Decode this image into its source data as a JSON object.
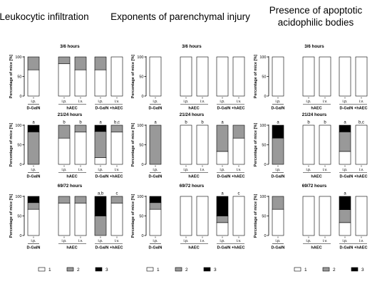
{
  "colors": {
    "1": "#ffffff",
    "2": "#999999",
    "3": "#000000"
  },
  "legend": [
    "1",
    "2",
    "3"
  ],
  "column_titles": [
    [
      "Leukocytic infiltration"
    ],
    [
      "Exponents of parenchymal injury"
    ],
    [
      "Presence of apoptotic",
      "acidophilic bodies"
    ]
  ],
  "row_titles": [
    "3/6 hours",
    "21/24 hours",
    "69/72 hours"
  ],
  "ylabel": "Percentage of mice [%]",
  "yticks": [
    0,
    50,
    100
  ],
  "groups": [
    "D-GalN",
    "hAEC",
    "D-GalN +hAEC"
  ],
  "bars": [
    "i.p.",
    "i.p.",
    "i.v.",
    "i.p.",
    "i.v."
  ],
  "chart_data": [
    {
      "type": "bar",
      "stacked": true,
      "title": "3/6 hours",
      "ylabel": "Percentage of mice [%]",
      "ylim": [
        0,
        100
      ],
      "categories": [
        "D-GalN i.p.",
        "hAEC i.p.",
        "hAEC i.v.",
        "D-GalN +hAEC i.p.",
        "D-GalN +hAEC i.v."
      ],
      "series": [
        {
          "name": "1",
          "values": [
            67,
            83,
            67,
            67,
            100
          ]
        },
        {
          "name": "2",
          "values": [
            33,
            17,
            33,
            33,
            0
          ]
        },
        {
          "name": "3",
          "values": [
            0,
            0,
            0,
            0,
            0
          ]
        }
      ],
      "annotations": [
        "",
        "",
        "",
        "",
        ""
      ]
    },
    {
      "type": "bar",
      "stacked": true,
      "title": "3/6 hours",
      "ylabel": "Percentage of mice [%]",
      "ylim": [
        0,
        100
      ],
      "categories": [
        "D-GalN i.p.",
        "hAEC i.p.",
        "hAEC i.v.",
        "D-GalN +hAEC i.p.",
        "D-GalN +hAEC i.v."
      ],
      "series": [
        {
          "name": "1",
          "values": [
            100,
            100,
            100,
            100,
            100
          ]
        },
        {
          "name": "2",
          "values": [
            0,
            0,
            0,
            0,
            0
          ]
        },
        {
          "name": "3",
          "values": [
            0,
            0,
            0,
            0,
            0
          ]
        }
      ],
      "annotations": [
        "",
        "",
        "",
        "",
        ""
      ]
    },
    {
      "type": "bar",
      "stacked": true,
      "title": "3/6 hours",
      "ylabel": "Percentage of mice [%]",
      "ylim": [
        0,
        100
      ],
      "categories": [
        "D-GalN i.p.",
        "hAEC i.p.",
        "hAEC i.v.",
        "D-GalN +hAEC i.p.",
        "D-GalN +hAEC i.v."
      ],
      "series": [
        {
          "name": "1",
          "values": [
            100,
            100,
            100,
            100,
            100
          ]
        },
        {
          "name": "2",
          "values": [
            0,
            0,
            0,
            0,
            0
          ]
        },
        {
          "name": "3",
          "values": [
            0,
            0,
            0,
            0,
            0
          ]
        }
      ],
      "annotations": [
        "",
        "",
        "",
        "",
        ""
      ]
    },
    {
      "type": "bar",
      "stacked": true,
      "title": "21/24 hours",
      "ylabel": "Percentage of mice [%]",
      "ylim": [
        0,
        100
      ],
      "categories": [
        "D-GalN i.p.",
        "hAEC i.p.",
        "hAEC i.v.",
        "D-GalN +hAEC i.p.",
        "D-GalN +hAEC i.v."
      ],
      "series": [
        {
          "name": "1",
          "values": [
            0,
            67,
            83,
            17,
            83
          ]
        },
        {
          "name": "2",
          "values": [
            83,
            33,
            17,
            67,
            17
          ]
        },
        {
          "name": "3",
          "values": [
            17,
            0,
            0,
            16,
            0
          ]
        }
      ],
      "annotations": [
        "a",
        "b",
        "b",
        "a",
        "b,c"
      ]
    },
    {
      "type": "bar",
      "stacked": true,
      "title": "21/24 hours",
      "ylabel": "Percentage of mice [%]",
      "ylim": [
        0,
        100
      ],
      "categories": [
        "D-GalN i.p.",
        "hAEC i.p.",
        "hAEC i.v.",
        "D-GalN +hAEC i.p.",
        "D-GalN +hAEC i.v."
      ],
      "series": [
        {
          "name": "1",
          "values": [
            0,
            100,
            100,
            33,
            67
          ]
        },
        {
          "name": "2",
          "values": [
            100,
            0,
            0,
            67,
            33
          ]
        },
        {
          "name": "3",
          "values": [
            0,
            0,
            0,
            0,
            0
          ]
        }
      ],
      "annotations": [
        "a",
        "b",
        "b",
        "a",
        ""
      ]
    },
    {
      "type": "bar",
      "stacked": true,
      "title": "21/24 hours",
      "ylabel": "Percentage of mice [%]",
      "ylim": [
        0,
        100
      ],
      "categories": [
        "D-GalN i.p.",
        "hAEC i.p.",
        "hAEC i.v.",
        "D-GalN +hAEC i.p.",
        "D-GalN +hAEC i.v."
      ],
      "series": [
        {
          "name": "1",
          "values": [
            0,
            100,
            100,
            33,
            100
          ]
        },
        {
          "name": "2",
          "values": [
            67,
            0,
            0,
            50,
            0
          ]
        },
        {
          "name": "3",
          "values": [
            33,
            0,
            0,
            17,
            0
          ]
        }
      ],
      "annotations": [
        "a",
        "b",
        "b",
        "a",
        "b,c"
      ]
    },
    {
      "type": "bar",
      "stacked": true,
      "title": "69/72 hours",
      "ylabel": "Percentage of mice [%]",
      "ylim": [
        0,
        100
      ],
      "categories": [
        "D-GalN i.p.",
        "hAEC i.p.",
        "hAEC i.v.",
        "D-GalN +hAEC i.p.",
        "D-GalN +hAEC i.v."
      ],
      "series": [
        {
          "name": "1",
          "values": [
            67,
            83,
            83,
            0,
            83
          ]
        },
        {
          "name": "2",
          "values": [
            17,
            17,
            17,
            50,
            17
          ]
        },
        {
          "name": "3",
          "values": [
            16,
            0,
            0,
            50,
            0
          ]
        }
      ],
      "annotations": [
        "",
        "",
        "",
        "a,b",
        "c"
      ]
    },
    {
      "type": "bar",
      "stacked": true,
      "title": "69/72 hours",
      "ylabel": "Percentage of mice [%]",
      "ylim": [
        0,
        100
      ],
      "categories": [
        "D-GalN i.p.",
        "hAEC i.p.",
        "hAEC i.v.",
        "D-GalN +hAEC i.p.",
        "D-GalN +hAEC i.v."
      ],
      "series": [
        {
          "name": "1",
          "values": [
            67,
            100,
            100,
            33,
            100
          ]
        },
        {
          "name": "2",
          "values": [
            17,
            0,
            0,
            17,
            0
          ]
        },
        {
          "name": "3",
          "values": [
            16,
            0,
            0,
            50,
            0
          ]
        }
      ],
      "annotations": [
        "",
        "",
        "",
        "a",
        "c"
      ]
    },
    {
      "type": "bar",
      "stacked": true,
      "title": "69/72 hours",
      "ylabel": "Percentage of mice [%]",
      "ylim": [
        0,
        100
      ],
      "categories": [
        "D-GalN i.p.",
        "hAEC i.p.",
        "hAEC i.v.",
        "D-GalN +hAEC i.p.",
        "D-GalN +hAEC i.v."
      ],
      "series": [
        {
          "name": "1",
          "values": [
            67,
            100,
            100,
            33,
            100
          ]
        },
        {
          "name": "2",
          "values": [
            33,
            0,
            0,
            33,
            0
          ]
        },
        {
          "name": "3",
          "values": [
            0,
            0,
            0,
            34,
            0
          ]
        }
      ],
      "annotations": [
        "",
        "",
        "",
        "a",
        ""
      ]
    }
  ]
}
